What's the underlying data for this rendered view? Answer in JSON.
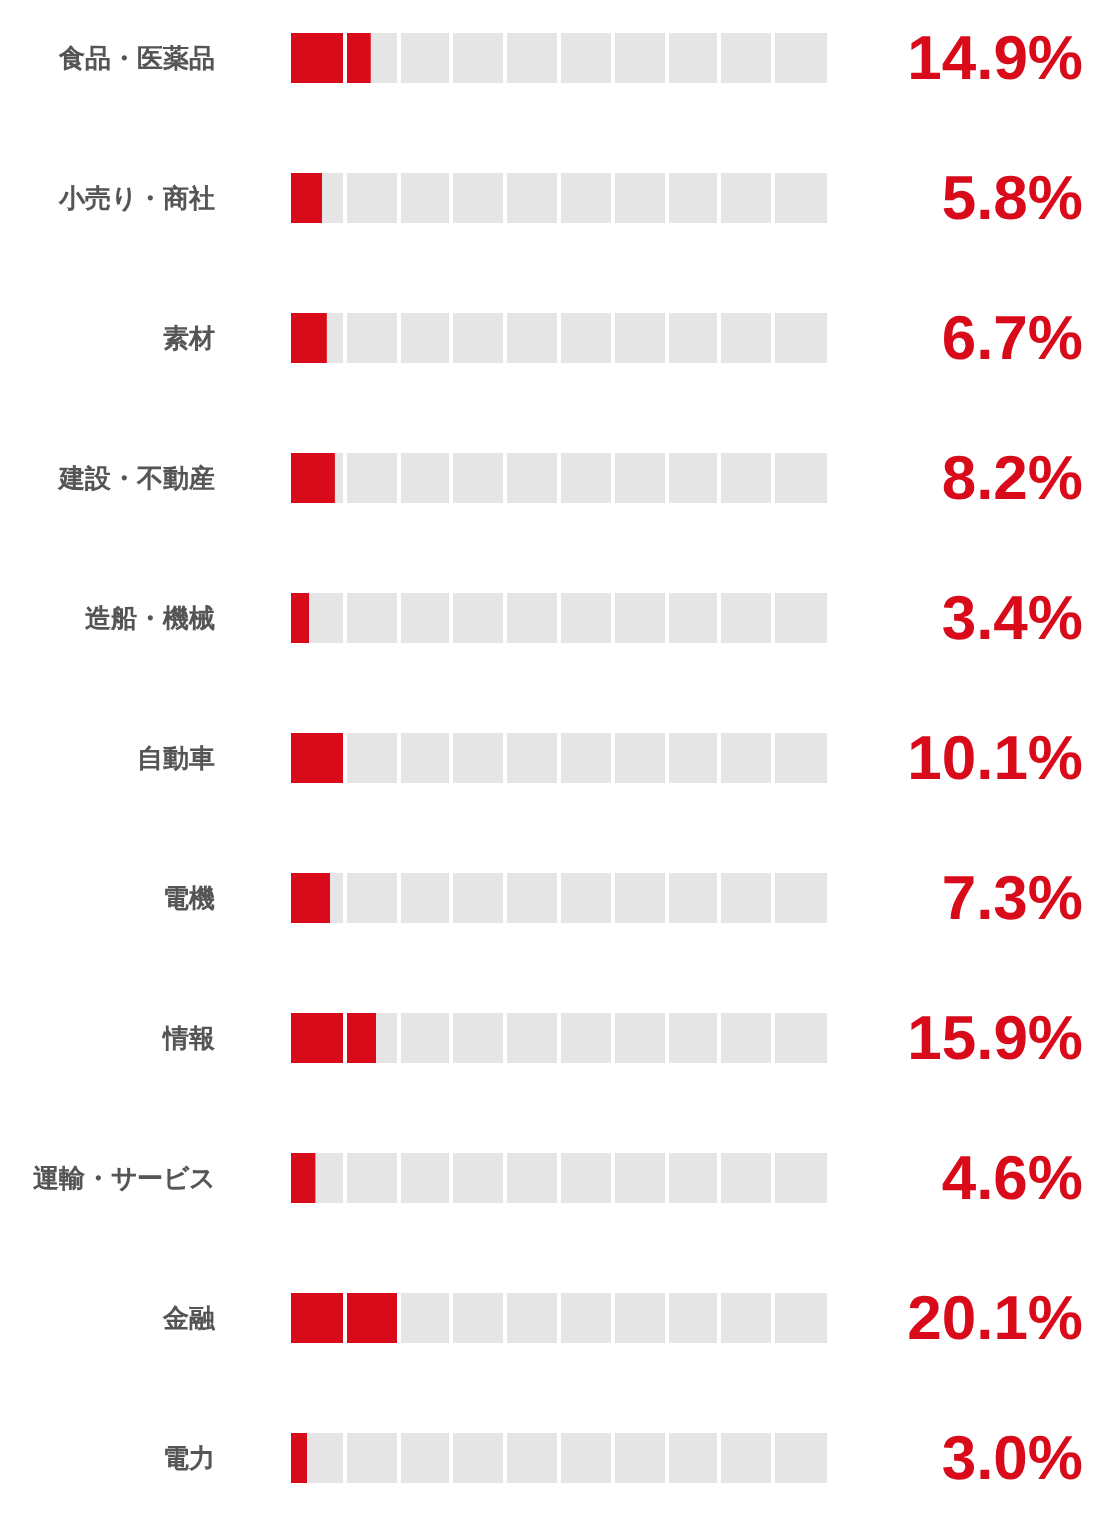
{
  "chart_data": {
    "type": "bar",
    "orientation": "horizontal",
    "stacked": true,
    "categories": [
      "食品・医薬品",
      "小売り・商社",
      "素材",
      "建設・不動産",
      "造船・機械",
      "自動車",
      "電機",
      "情報",
      "運輸・サービス",
      "金融",
      "電力"
    ],
    "series": [
      {
        "color": "#d90b1a",
        "values": [
          14.9,
          5.8,
          6.7,
          8.2,
          3.4,
          10.1,
          7.3,
          15.9,
          4.6,
          20.1,
          3.0
        ],
        "value_labels": [
          "14.9%",
          "5.8%",
          "6.7%",
          "8.2%",
          "3.4%",
          "10.1%",
          "7.3%",
          "15.9%",
          "4.6%",
          "20.1%",
          "3.0%"
        ]
      },
      {
        "color": "#e5e5e5",
        "values": [
          85.1,
          94.2,
          93.3,
          91.8,
          96.6,
          89.9,
          92.7,
          84.1,
          95.4,
          79.9,
          97.0
        ]
      }
    ],
    "xlim": [
      0,
      100
    ],
    "xticks": [
      {
        "value": 10,
        "label": null
      },
      {
        "value": 20,
        "label": null
      },
      {
        "value": 30,
        "label": null
      },
      {
        "value": 40,
        "label": null
      },
      {
        "value": 50,
        "label": null
      },
      {
        "value": 60,
        "label": null
      },
      {
        "value": 70,
        "label": null
      },
      {
        "value": 80,
        "label": null
      },
      {
        "value": 90,
        "label": null
      }
    ],
    "grid": "x",
    "tick_labels": "y"
  }
}
